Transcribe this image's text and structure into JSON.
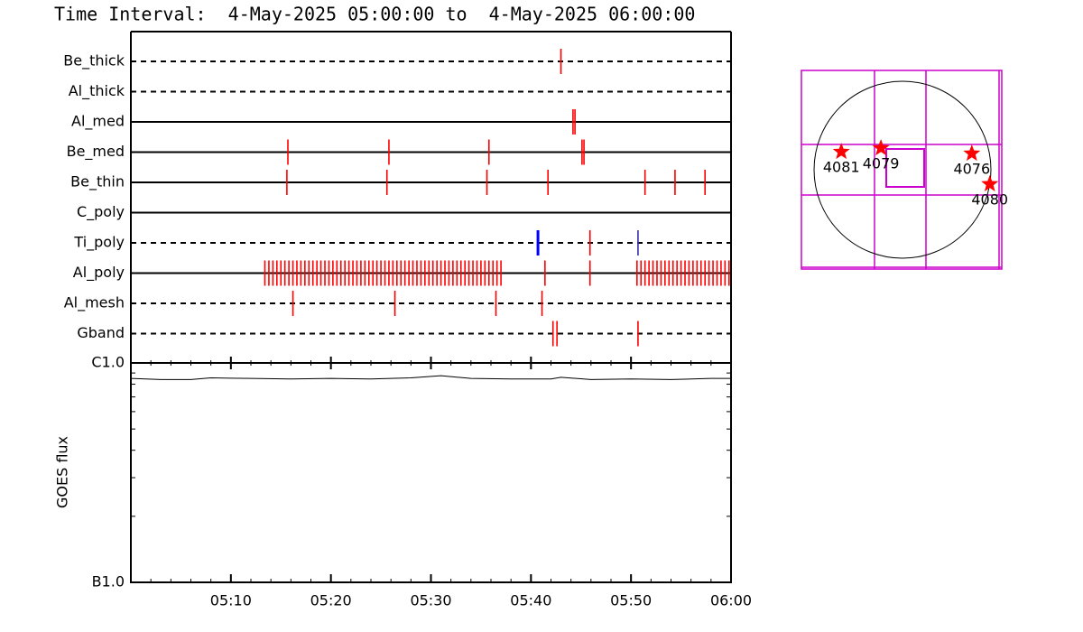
{
  "chart_data": [
    {
      "type": "timeline",
      "title": "Time Interval:  4-May-2025 05:00:00 to  4-May-2025 06:00:00",
      "series": [
        {
          "name": "Be_thick",
          "line": "dashed",
          "color": "#ff0000",
          "x": [
            43.0
          ]
        },
        {
          "name": "Al_thick",
          "line": "dashed",
          "color": "#ff0000",
          "x": []
        },
        {
          "name": "Al_med",
          "line": "solid",
          "color": "#ff0000",
          "x": [
            44.2,
            44.4
          ]
        },
        {
          "name": "Be_med",
          "line": "solid",
          "color": "#ff0000",
          "x": [
            15.7,
            25.8,
            35.8,
            45.1,
            45.3
          ]
        },
        {
          "name": "Be_thin",
          "line": "solid",
          "color": "#ff0000",
          "x": [
            15.6,
            25.6,
            35.6,
            41.7,
            51.4,
            54.4,
            57.4
          ]
        },
        {
          "name": "C_poly",
          "line": "solid",
          "color": "#ff0000",
          "x": []
        },
        {
          "name": "Ti_poly",
          "line": "dashed",
          "color": "#ff0000",
          "colors": [
            "#0000ff",
            "#ff0000",
            "#3333aa"
          ],
          "x": [
            40.7,
            45.9,
            50.7
          ]
        },
        {
          "name": "Al_poly",
          "line": "solid",
          "color": "#ff0000",
          "x": [
            13.4,
            13.8,
            14.2,
            14.6,
            15.0,
            15.4,
            15.8,
            16.2,
            16.6,
            17.0,
            17.4,
            17.8,
            18.2,
            18.6,
            19.0,
            19.4,
            19.8,
            20.2,
            20.6,
            21.0,
            21.4,
            21.8,
            22.2,
            22.6,
            23.0,
            23.4,
            23.8,
            24.2,
            24.6,
            25.0,
            25.4,
            25.8,
            26.2,
            26.6,
            27.0,
            27.4,
            27.8,
            28.2,
            28.6,
            29.0,
            29.4,
            29.8,
            30.2,
            30.6,
            31.0,
            31.4,
            31.8,
            32.2,
            32.6,
            33.0,
            33.4,
            33.8,
            34.2,
            34.6,
            35.0,
            35.4,
            35.8,
            36.2,
            36.6,
            37.0,
            41.4,
            45.9,
            50.6,
            51.0,
            51.4,
            51.8,
            52.2,
            52.6,
            53.0,
            53.4,
            53.8,
            54.2,
            54.6,
            55.0,
            55.4,
            55.8,
            56.2,
            56.6,
            57.0,
            57.4,
            57.8,
            58.2,
            58.6,
            59.0,
            59.4,
            59.8
          ]
        },
        {
          "name": "Al_mesh",
          "line": "dashed",
          "color": "#ff0000",
          "x": [
            16.2,
            26.4,
            36.5,
            41.1
          ]
        },
        {
          "name": "Gband",
          "line": "dashed",
          "color": "#ff0000",
          "x": [
            42.2,
            42.6,
            50.7
          ]
        }
      ]
    },
    {
      "type": "line",
      "ylabel": "GOES flux",
      "log": true,
      "color": "#000000",
      "x": [
        0,
        3,
        6,
        8,
        12,
        16,
        20,
        24,
        28,
        31,
        34,
        38,
        42,
        43,
        46,
        50,
        54,
        58,
        60
      ],
      "values": [
        8.5e-07,
        8.4e-07,
        8.4e-07,
        8.55e-07,
        8.5e-07,
        8.45e-07,
        8.5e-07,
        8.45e-07,
        8.55e-07,
        8.75e-07,
        8.5e-07,
        8.45e-07,
        8.45e-07,
        8.6e-07,
        8.4e-07,
        8.45e-07,
        8.4e-07,
        8.5e-07,
        8.5e-07
      ],
      "xlim": [
        0,
        60
      ],
      "xticks": [
        {
          "value": 10,
          "label": "05:10"
        },
        {
          "value": 20,
          "label": "05:20"
        },
        {
          "value": 30,
          "label": "05:30"
        },
        {
          "value": 40,
          "label": "05:40"
        },
        {
          "value": 50,
          "label": "05:50"
        },
        {
          "value": 60,
          "label": "06:00"
        }
      ],
      "ylim": [
        1e-07,
        1e-06
      ],
      "yticks": [
        {
          "value": 1e-07,
          "label": "B1.0"
        },
        {
          "value": 1e-06,
          "label": "C1.0"
        }
      ]
    },
    {
      "type": "scatter",
      "color": "#ff0000",
      "x": [
        -660,
        -233,
        747,
        941
      ],
      "values": [
        194,
        233,
        175,
        -155
      ],
      "labels": [
        "4081",
        "4079",
        "4076",
        "4080"
      ],
      "xlim": [
        -1090,
        1070
      ],
      "ylim": [
        -1070,
        1070
      ]
    }
  ]
}
